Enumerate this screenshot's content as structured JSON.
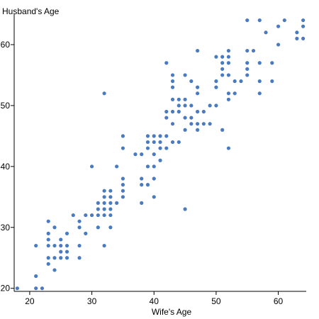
{
  "chart_data": {
    "type": "scatter",
    "xlabel": "Wife's Age",
    "ylabel": "Husband's Age",
    "xlim": [
      17.5,
      64.5
    ],
    "ylim": [
      19.5,
      65
    ],
    "xticks": [
      20,
      30,
      40,
      50,
      60
    ],
    "yticks": [
      20,
      30,
      40,
      50,
      60
    ],
    "grid": false,
    "marker_color": "#4a7bc0",
    "points": [
      [
        18,
        20
      ],
      [
        21,
        20
      ],
      [
        22,
        20
      ],
      [
        21,
        22
      ],
      [
        21,
        27
      ],
      [
        23,
        24
      ],
      [
        23,
        25
      ],
      [
        23,
        27
      ],
      [
        23,
        28
      ],
      [
        23,
        29
      ],
      [
        23,
        31
      ],
      [
        24,
        23
      ],
      [
        24,
        25
      ],
      [
        24,
        27
      ],
      [
        24,
        30
      ],
      [
        25,
        25
      ],
      [
        25,
        26
      ],
      [
        25,
        27
      ],
      [
        25,
        28
      ],
      [
        26,
        25
      ],
      [
        26,
        26
      ],
      [
        26,
        27
      ],
      [
        26,
        29
      ],
      [
        27,
        32
      ],
      [
        28,
        25
      ],
      [
        28,
        27
      ],
      [
        28,
        30
      ],
      [
        28,
        31
      ],
      [
        29,
        29
      ],
      [
        29,
        32
      ],
      [
        30,
        32
      ],
      [
        30,
        40
      ],
      [
        31,
        30
      ],
      [
        31,
        32
      ],
      [
        31,
        33
      ],
      [
        31,
        34
      ],
      [
        32,
        27
      ],
      [
        32,
        32
      ],
      [
        32,
        33
      ],
      [
        32,
        34
      ],
      [
        32,
        35
      ],
      [
        32,
        36
      ],
      [
        32,
        52
      ],
      [
        33,
        30
      ],
      [
        33,
        32
      ],
      [
        33,
        33
      ],
      [
        33,
        34
      ],
      [
        33,
        35
      ],
      [
        33,
        36
      ],
      [
        34,
        34
      ],
      [
        34,
        40
      ],
      [
        35,
        35
      ],
      [
        35,
        36
      ],
      [
        35,
        37
      ],
      [
        35,
        38
      ],
      [
        35,
        43
      ],
      [
        35,
        45
      ],
      [
        37,
        42
      ],
      [
        38,
        34
      ],
      [
        38,
        37
      ],
      [
        38,
        38
      ],
      [
        38,
        42
      ],
      [
        39,
        37
      ],
      [
        39,
        40
      ],
      [
        39,
        43
      ],
      [
        39,
        44
      ],
      [
        39,
        45
      ],
      [
        40,
        35
      ],
      [
        40,
        38
      ],
      [
        40,
        40
      ],
      [
        40,
        42
      ],
      [
        40,
        44
      ],
      [
        40,
        45
      ],
      [
        41,
        41
      ],
      [
        41,
        43
      ],
      [
        41,
        44
      ],
      [
        41,
        45
      ],
      [
        42,
        43
      ],
      [
        42,
        45
      ],
      [
        42,
        48
      ],
      [
        42,
        49
      ],
      [
        42,
        57
      ],
      [
        43,
        44
      ],
      [
        43,
        47
      ],
      [
        43,
        49
      ],
      [
        43,
        51
      ],
      [
        43,
        53
      ],
      [
        43,
        54
      ],
      [
        43,
        55
      ],
      [
        44,
        44
      ],
      [
        44,
        49
      ],
      [
        44,
        50
      ],
      [
        44,
        51
      ],
      [
        45,
        33
      ],
      [
        45,
        46
      ],
      [
        45,
        48
      ],
      [
        45,
        50
      ],
      [
        45,
        51
      ],
      [
        45,
        55
      ],
      [
        46,
        47
      ],
      [
        46,
        48
      ],
      [
        46,
        50
      ],
      [
        46,
        54
      ],
      [
        47,
        46
      ],
      [
        47,
        47
      ],
      [
        47,
        49
      ],
      [
        47,
        52
      ],
      [
        47,
        53
      ],
      [
        47,
        59
      ],
      [
        48,
        47
      ],
      [
        48,
        49
      ],
      [
        49,
        47
      ],
      [
        49,
        50
      ],
      [
        50,
        50
      ],
      [
        50,
        53
      ],
      [
        50,
        54
      ],
      [
        50,
        58
      ],
      [
        51,
        46
      ],
      [
        51,
        55
      ],
      [
        51,
        56
      ],
      [
        51,
        57
      ],
      [
        51,
        58
      ],
      [
        52,
        43
      ],
      [
        52,
        51
      ],
      [
        52,
        52
      ],
      [
        52,
        55
      ],
      [
        52,
        57
      ],
      [
        52,
        58
      ],
      [
        52,
        59
      ],
      [
        53,
        52
      ],
      [
        53,
        54
      ],
      [
        54,
        54
      ],
      [
        55,
        55
      ],
      [
        55,
        56
      ],
      [
        55,
        57
      ],
      [
        55,
        59
      ],
      [
        55,
        64
      ],
      [
        56,
        59
      ],
      [
        57,
        52
      ],
      [
        57,
        54
      ],
      [
        57,
        57
      ],
      [
        57,
        64
      ],
      [
        58,
        62
      ],
      [
        59,
        54
      ],
      [
        59,
        57
      ],
      [
        60,
        60
      ],
      [
        60,
        63
      ],
      [
        61,
        64
      ],
      [
        63,
        61
      ],
      [
        63,
        62
      ],
      [
        64,
        61
      ],
      [
        64,
        63
      ],
      [
        64,
        64
      ]
    ]
  }
}
